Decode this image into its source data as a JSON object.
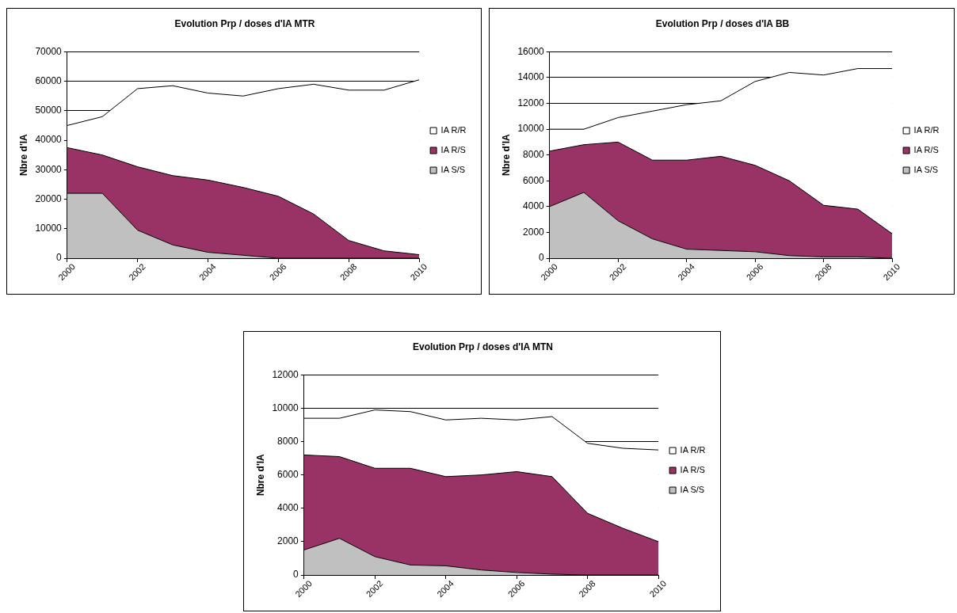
{
  "chart_data": [
    {
      "type": "area",
      "stacked": true,
      "title": "Evolution Prp / doses d'IA MTR",
      "ylabel": "Nbre d'IA",
      "x": [
        2000,
        2001,
        2002,
        2003,
        2004,
        2005,
        2006,
        2007,
        2008,
        2009,
        2010
      ],
      "xlim": [
        2000,
        2010
      ],
      "xticks": [
        2000,
        2002,
        2004,
        2006,
        2008,
        2010
      ],
      "ylim": [
        0,
        70000
      ],
      "yticks": [
        0,
        10000,
        20000,
        30000,
        40000,
        50000,
        60000,
        70000
      ],
      "grid": "y",
      "legend": "right",
      "series": [
        {
          "name": "IA S/S",
          "color": "#c0c0c0",
          "values": [
            22000,
            22000,
            9500,
            4500,
            2000,
            1000,
            0,
            0,
            0,
            0,
            0
          ]
        },
        {
          "name": "IA R/S",
          "color": "#993366",
          "values": [
            15500,
            13000,
            21500,
            23500,
            24500,
            23000,
            21000,
            15000,
            6000,
            2500,
            1200
          ]
        },
        {
          "name": "IA R/R",
          "color": "#ffffff",
          "values": [
            7500,
            13000,
            26500,
            30500,
            29500,
            31000,
            36500,
            44000,
            51000,
            54500,
            59300
          ]
        }
      ]
    },
    {
      "type": "area",
      "stacked": true,
      "title": "Evolution Prp / doses d'IA BB",
      "ylabel": "Nbre d'IA",
      "x": [
        2000,
        2001,
        2002,
        2003,
        2004,
        2005,
        2006,
        2007,
        2008,
        2009,
        2010
      ],
      "xlim": [
        2000,
        2010
      ],
      "xticks": [
        2000,
        2002,
        2004,
        2006,
        2008,
        2010
      ],
      "ylim": [
        0,
        16000
      ],
      "yticks": [
        0,
        2000,
        4000,
        6000,
        8000,
        10000,
        12000,
        14000,
        16000
      ],
      "grid": "y",
      "legend": "right",
      "series": [
        {
          "name": "IA S/S",
          "color": "#c0c0c0",
          "values": [
            4000,
            5100,
            2900,
            1500,
            700,
            600,
            500,
            200,
            100,
            100,
            0
          ]
        },
        {
          "name": "IA R/S",
          "color": "#993366",
          "values": [
            4300,
            3700,
            6100,
            6100,
            6900,
            7300,
            6700,
            5800,
            4000,
            3700,
            1900
          ]
        },
        {
          "name": "IA R/R",
          "color": "#ffffff",
          "values": [
            1700,
            1200,
            1900,
            3800,
            4300,
            4300,
            6500,
            8400,
            10100,
            10900,
            12800
          ]
        }
      ]
    },
    {
      "type": "area",
      "stacked": true,
      "title": "Evolution Prp / doses d'IA MTN",
      "ylabel": "Nbre d'IA",
      "x": [
        2000,
        2001,
        2002,
        2003,
        2004,
        2005,
        2006,
        2007,
        2008,
        2009,
        2010
      ],
      "xlim": [
        2000,
        2010
      ],
      "xticks": [
        2000,
        2002,
        2004,
        2006,
        2008,
        2010
      ],
      "ylim": [
        0,
        12000
      ],
      "yticks": [
        0,
        2000,
        4000,
        6000,
        8000,
        10000,
        12000
      ],
      "grid": "y",
      "legend": "right",
      "series": [
        {
          "name": "IA S/S",
          "color": "#c0c0c0",
          "values": [
            1500,
            2200,
            1100,
            600,
            550,
            300,
            150,
            50,
            0,
            0,
            0
          ]
        },
        {
          "name": "IA R/S",
          "color": "#993366",
          "values": [
            5700,
            4900,
            5300,
            5800,
            5350,
            5700,
            6050,
            5850,
            3700,
            2800,
            2000
          ]
        },
        {
          "name": "IA R/R",
          "color": "#ffffff",
          "values": [
            2200,
            2300,
            3500,
            3400,
            3400,
            3400,
            3100,
            3600,
            4200,
            4800,
            5500
          ]
        }
      ]
    }
  ]
}
